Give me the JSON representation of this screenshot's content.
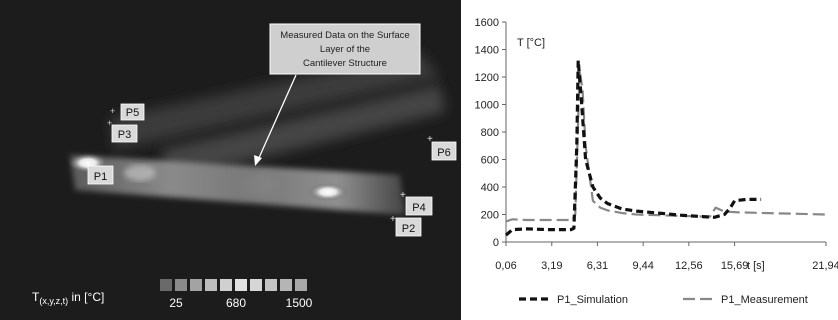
{
  "thermal_image": {
    "annotation": [
      "Measured Data on the Surface",
      "Layer of the",
      "Cantilever Structure"
    ],
    "points": [
      "P1",
      "P2",
      "P3",
      "P4",
      "P5",
      "P6"
    ],
    "scale_label": "T(x,y,z,t) in [°C]",
    "scale_label_main": "T",
    "scale_label_sub": "(x,y,z,t)",
    "scale_label_rest": " in [°C]",
    "scale_ticks": [
      "25",
      "680",
      "1500"
    ]
  },
  "chart_data": {
    "type": "line",
    "title": "",
    "ylabel": "T [°C]",
    "xlabel": "t [s]",
    "ylim": [
      0,
      1600
    ],
    "yticks": [
      "0",
      "200",
      "400",
      "600",
      "800",
      "1000",
      "1200",
      "1400",
      "1600"
    ],
    "xticks": [
      "0,06",
      "3,19",
      "6,31",
      "9,44",
      "12,56",
      "15,69",
      "21,94"
    ],
    "xlim": [
      0.06,
      21.94
    ],
    "grid": false,
    "legend_position": "bottom",
    "series": [
      {
        "name": "P1_Simulation",
        "x": [
          0.06,
          0.5,
          1.5,
          3.0,
          4.5,
          4.7,
          4.9,
          5.0,
          5.2,
          5.5,
          6.0,
          6.5,
          7.0,
          8.0,
          9.0,
          10.5,
          12.0,
          13.5,
          14.3,
          15.0,
          15.4,
          15.69,
          16.5,
          17.5
        ],
        "y": [
          50,
          90,
          95,
          90,
          90,
          100,
          700,
          1320,
          1050,
          600,
          400,
          320,
          280,
          240,
          225,
          210,
          195,
          185,
          180,
          200,
          250,
          300,
          310,
          310
        ]
      },
      {
        "name": "P1_Measurement",
        "x": [
          0.06,
          0.5,
          1.5,
          3.0,
          4.6,
          4.8,
          5.0,
          5.1,
          5.3,
          5.5,
          6.0,
          6.5,
          7.0,
          8.0,
          9.0,
          10.5,
          12.0,
          14.0,
          14.4,
          14.8,
          15.3,
          16.0,
          18.0,
          20.0,
          21.94
        ],
        "y": [
          150,
          165,
          160,
          160,
          160,
          200,
          900,
          1250,
          1100,
          700,
          300,
          250,
          230,
          210,
          200,
          195,
          190,
          185,
          250,
          230,
          220,
          215,
          210,
          205,
          200
        ]
      }
    ],
    "colors": {
      "P1_Simulation": "#111111",
      "P1_Measurement": "#888888"
    }
  }
}
